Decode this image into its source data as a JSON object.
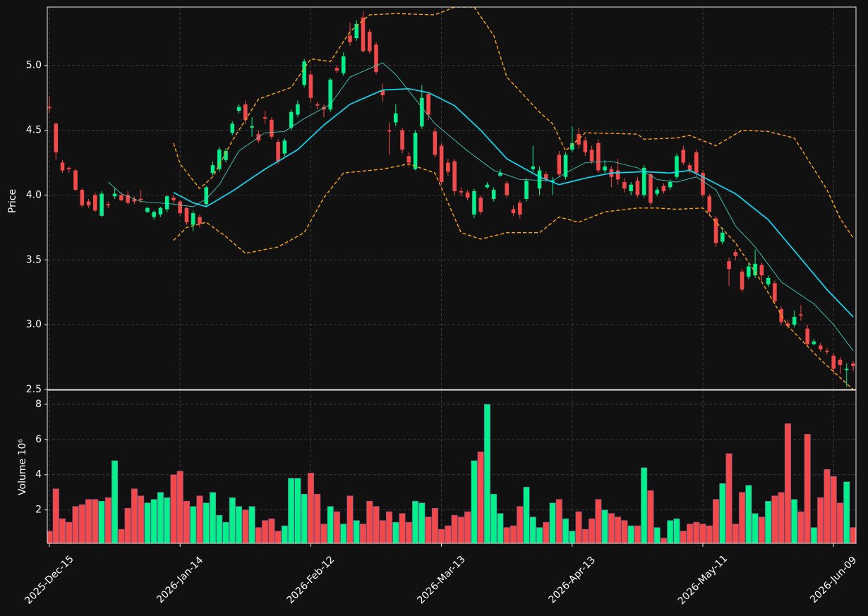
{
  "chart_data": [
    {
      "type": "candlestick",
      "ylabel": "Price",
      "ylim": [
        2.5,
        5.45
      ],
      "yticks": [
        2.5,
        {
          "value": 3.0,
          "label": "3.0"
        },
        3.5,
        {
          "value": 4.0,
          "label": "4.0"
        },
        4.5,
        {
          "value": 5.0,
          "label": "5.0"
        }
      ],
      "grid": true,
      "up_color": "#00f08c",
      "down_color": "#f24a4a",
      "open": [
        4.68,
        4.55,
        4.25,
        4.21,
        4.19,
        4.04,
        3.95,
        4.0,
        3.84,
        3.93,
        3.99,
        4.0,
        4.0,
        3.97,
        3.97,
        3.87,
        3.83,
        3.85,
        3.89,
        3.98,
        3.95,
        3.9,
        3.77,
        3.83,
        3.93,
        4.17,
        4.2,
        4.27,
        4.48,
        4.65,
        4.7,
        4.52,
        4.47,
        4.6,
        4.58,
        4.41,
        4.32,
        4.52,
        4.62,
        4.85,
        4.93,
        4.7,
        4.68,
        4.66,
        4.98,
        4.94,
        5.23,
        5.21,
        5.37,
        5.26,
        5.16,
        4.81,
        4.5,
        4.56,
        4.5,
        4.3,
        4.2,
        4.53,
        4.78,
        4.49,
        4.38,
        4.25,
        4.26,
        4.03,
        4.02,
        3.85,
        3.98,
        4.06,
        3.97,
        4.15,
        4.09,
        3.89,
        3.94,
        3.97,
        4.2,
        4.05,
        4.16,
        4.1,
        4.31,
        4.14,
        4.35,
        4.47,
        4.42,
        4.35,
        4.4,
        4.19,
        4.2,
        4.19,
        4.1,
        4.03,
        4.11,
        4.0,
        4.16,
        4.01,
        4.07,
        4.06,
        4.14,
        4.35,
        4.23,
        4.33,
        4.17,
        3.99,
        3.82,
        3.64,
        3.49,
        3.56,
        3.41,
        3.37,
        3.38,
        3.46,
        3.31,
        3.32,
        3.12,
        3.01,
        3.0,
        3.08,
        2.97,
        2.85,
        2.84,
        2.8,
        2.76,
        2.73,
        2.65,
        2.7
      ],
      "high": [
        4.76,
        4.56,
        4.27,
        4.22,
        4.2,
        4.05,
        3.97,
        4.02,
        4.03,
        3.95,
        4.05,
        4.02,
        4.03,
        3.99,
        4.04,
        3.91,
        3.88,
        3.91,
        4.0,
        4.0,
        3.96,
        3.91,
        3.88,
        3.85,
        4.07,
        4.26,
        4.37,
        4.36,
        4.57,
        4.7,
        4.73,
        4.6,
        4.5,
        4.65,
        4.6,
        4.43,
        4.44,
        4.66,
        4.73,
        5.05,
        4.96,
        4.72,
        4.7,
        4.9,
        5.0,
        5.1,
        5.33,
        5.35,
        5.42,
        5.28,
        5.18,
        4.86,
        4.56,
        4.7,
        4.52,
        4.33,
        4.5,
        4.85,
        4.8,
        4.52,
        4.4,
        4.28,
        4.28,
        4.06,
        4.04,
        4.05,
        4.0,
        4.1,
        4.06,
        4.2,
        4.11,
        3.92,
        3.96,
        4.13,
        4.38,
        4.22,
        4.18,
        4.14,
        4.34,
        4.33,
        4.53,
        4.52,
        4.45,
        4.38,
        4.43,
        4.27,
        4.22,
        4.28,
        4.13,
        4.1,
        4.14,
        4.23,
        4.18,
        4.06,
        4.09,
        4.12,
        4.32,
        4.38,
        4.25,
        4.35,
        4.19,
        4.01,
        3.84,
        3.75,
        3.52,
        3.58,
        3.43,
        3.48,
        3.58,
        3.48,
        3.38,
        3.34,
        3.14,
        3.04,
        3.11,
        3.15,
        3.0,
        2.89,
        2.86,
        2.82,
        2.78,
        2.75,
        2.7,
        2.72
      ],
      "low": [
        4.63,
        4.27,
        4.17,
        4.17,
        4.03,
        3.91,
        3.9,
        3.87,
        3.83,
        3.9,
        3.97,
        3.95,
        3.93,
        3.93,
        3.94,
        3.86,
        3.81,
        3.83,
        3.87,
        3.93,
        3.84,
        3.77,
        3.72,
        3.75,
        3.91,
        4.15,
        4.18,
        4.25,
        4.46,
        4.63,
        4.55,
        4.45,
        4.4,
        4.55,
        4.43,
        4.24,
        4.3,
        4.5,
        4.6,
        4.83,
        4.72,
        4.66,
        4.6,
        4.64,
        4.94,
        4.92,
        5.15,
        5.19,
        5.1,
        5.09,
        4.93,
        4.72,
        4.31,
        4.53,
        4.32,
        4.22,
        4.19,
        4.51,
        4.58,
        4.29,
        4.08,
        4.15,
        4.0,
        3.99,
        3.96,
        3.82,
        3.85,
        4.05,
        3.95,
        4.14,
        3.98,
        3.84,
        3.82,
        3.95,
        4.18,
        4.0,
        4.1,
        4.0,
        4.14,
        4.12,
        4.33,
        4.36,
        4.3,
        4.24,
        4.17,
        4.17,
        4.06,
        4.08,
        4.02,
        4.0,
        3.98,
        3.98,
        3.92,
        3.99,
        4.01,
        4.04,
        4.12,
        4.23,
        4.17,
        4.15,
        3.98,
        3.84,
        3.6,
        3.62,
        3.3,
        3.5,
        3.25,
        3.35,
        3.36,
        3.34,
        3.29,
        3.16,
        3.0,
        2.97,
        2.98,
        3.03,
        2.83,
        2.84,
        2.79,
        2.77,
        2.62,
        2.62,
        2.52,
        2.64
      ],
      "close": [
        4.67,
        4.33,
        4.19,
        4.2,
        4.04,
        3.92,
        3.92,
        3.88,
        4.01,
        3.92,
        4.01,
        3.96,
        3.94,
        3.95,
        3.96,
        3.9,
        3.87,
        3.9,
        3.99,
        3.96,
        3.86,
        3.79,
        3.86,
        3.78,
        4.06,
        4.23,
        4.35,
        4.34,
        4.55,
        4.68,
        4.58,
        4.53,
        4.42,
        4.59,
        4.45,
        4.26,
        4.42,
        4.64,
        4.7,
        5.03,
        4.75,
        4.69,
        4.66,
        4.89,
        4.96,
        5.07,
        5.18,
        5.32,
        5.11,
        5.11,
        4.95,
        4.77,
        4.49,
        4.63,
        4.35,
        4.25,
        4.48,
        4.75,
        4.62,
        4.31,
        4.1,
        4.18,
        4.03,
        4.02,
        3.98,
        4.03,
        3.87,
        4.08,
        4.04,
        4.17,
        4.0,
        3.86,
        3.85,
        4.11,
        4.22,
        4.19,
        4.12,
        4.11,
        4.16,
        4.31,
        4.4,
        4.39,
        4.33,
        4.26,
        4.19,
        4.22,
        4.14,
        4.12,
        4.05,
        4.08,
        4.0,
        4.21,
        3.94,
        4.04,
        4.03,
        4.1,
        4.3,
        4.25,
        4.19,
        4.17,
        4.0,
        3.87,
        3.63,
        3.71,
        3.43,
        3.53,
        3.27,
        3.45,
        3.47,
        3.38,
        3.36,
        3.18,
        3.02,
        2.99,
        3.06,
        3.07,
        2.85,
        2.87,
        2.81,
        2.79,
        2.66,
        2.69,
        2.66,
        2.68
      ],
      "lines": [
        {
          "color": "#40e0d0",
          "linestyle": "solid",
          "x": [
            9,
            11,
            14,
            19,
            22,
            24,
            26,
            29,
            33,
            36,
            39,
            43,
            46,
            51,
            53,
            56,
            59,
            64,
            68,
            72,
            77,
            79,
            82,
            86,
            90,
            93,
            96,
            99,
            102,
            105,
            108,
            112,
            117,
            120,
            123
          ],
          "values": [
            4.1,
            4.01,
            3.95,
            3.93,
            3.91,
            3.97,
            4.08,
            4.34,
            4.48,
            4.49,
            4.59,
            4.7,
            4.91,
            5.02,
            4.93,
            4.74,
            4.55,
            4.34,
            4.19,
            4.12,
            4.11,
            4.17,
            4.25,
            4.26,
            4.21,
            4.12,
            4.1,
            4.14,
            4.04,
            3.76,
            3.6,
            3.33,
            3.16,
            3.0,
            2.8
          ]
        },
        {
          "color": "#00e5ff",
          "linestyle": "solid",
          "x": [
            19,
            22,
            24,
            28,
            33,
            38,
            42,
            46,
            51,
            55,
            58,
            62,
            66,
            70,
            75,
            78,
            82,
            86,
            91,
            95,
            98,
            100,
            105,
            110,
            114,
            119,
            123
          ],
          "values": [
            4.02,
            3.94,
            3.91,
            4.03,
            4.2,
            4.35,
            4.54,
            4.7,
            4.81,
            4.82,
            4.79,
            4.69,
            4.5,
            4.28,
            4.14,
            4.08,
            4.13,
            4.17,
            4.18,
            4.17,
            4.19,
            4.14,
            4.01,
            3.81,
            3.57,
            3.27,
            3.06
          ]
        },
        {
          "color": "#ffa500",
          "linestyle": "dashed",
          "x": [
            19,
            20,
            23,
            25,
            28,
            32,
            37,
            40,
            43,
            46,
            49,
            53,
            59,
            62,
            65,
            68,
            70,
            75,
            77,
            79,
            82,
            90,
            91,
            96,
            98,
            102,
            106,
            110,
            114,
            119,
            121,
            123
          ],
          "values": [
            4.4,
            4.24,
            4.05,
            4.14,
            4.42,
            4.74,
            4.83,
            5.05,
            5.03,
            5.26,
            5.39,
            5.4,
            5.39,
            5.45,
            5.45,
            5.23,
            4.91,
            4.64,
            4.55,
            4.34,
            4.48,
            4.47,
            4.43,
            4.44,
            4.46,
            4.38,
            4.5,
            4.49,
            4.44,
            4.04,
            3.82,
            3.67
          ]
        },
        {
          "color": "#ffa500",
          "linestyle": "dashed",
          "x": [
            19,
            21,
            24,
            27,
            30,
            35,
            39,
            42,
            45,
            51,
            55,
            59,
            63,
            66,
            70,
            75,
            78,
            81,
            85,
            90,
            93,
            96,
            100,
            105,
            109,
            113,
            118,
            123
          ],
          "values": [
            3.65,
            3.75,
            3.79,
            3.68,
            3.55,
            3.6,
            3.71,
            3.98,
            4.17,
            4.2,
            4.24,
            4.17,
            3.71,
            3.66,
            3.71,
            3.71,
            3.83,
            3.79,
            3.87,
            3.9,
            3.9,
            3.89,
            3.9,
            3.63,
            3.33,
            2.99,
            2.73,
            2.5
          ]
        }
      ]
    },
    {
      "type": "bar",
      "ylabel": "Volume  10⁶",
      "ylim": [
        0.1,
        8.8
      ],
      "yticks": [
        2,
        4,
        6,
        8
      ],
      "grid": true,
      "categories": [
        "2025-Dec-15",
        null,
        null,
        null,
        null,
        null,
        null,
        null,
        null,
        null,
        null,
        null,
        null,
        null,
        null,
        null,
        null,
        null,
        null,
        null,
        "2026-Jan-14",
        null,
        null,
        null,
        null,
        null,
        null,
        null,
        null,
        null,
        null,
        null,
        null,
        null,
        null,
        null,
        null,
        null,
        null,
        null,
        "2026-Feb-12",
        null,
        null,
        null,
        null,
        null,
        null,
        null,
        null,
        null,
        null,
        null,
        null,
        null,
        null,
        null,
        null,
        null,
        null,
        null,
        "2026-Mar-13",
        null,
        null,
        null,
        null,
        null,
        null,
        null,
        null,
        null,
        null,
        null,
        null,
        null,
        null,
        null,
        null,
        null,
        null,
        null,
        "2026-Apr-13",
        null,
        null,
        null,
        null,
        null,
        null,
        null,
        null,
        null,
        null,
        null,
        null,
        null,
        null,
        null,
        null,
        null,
        null,
        null,
        "2026-May-11",
        null,
        null,
        null,
        null,
        null,
        null,
        null,
        null,
        null,
        null,
        null,
        null,
        null,
        null,
        null,
        null,
        null,
        null,
        null,
        "2026-Jun-09",
        null,
        null,
        null
      ],
      "values": [
        0.8,
        3.2,
        1.5,
        1.3,
        2.2,
        2.3,
        2.6,
        2.6,
        2.5,
        2.7,
        4.8,
        0.9,
        2.1,
        3.2,
        2.8,
        2.4,
        2.6,
        3.0,
        2.7,
        4.0,
        4.2,
        2.5,
        2.2,
        2.8,
        2.4,
        3.0,
        1.7,
        1.3,
        2.7,
        2.2,
        2.0,
        2.2,
        1.0,
        1.4,
        1.5,
        0.8,
        1.1,
        3.8,
        3.8,
        2.9,
        4.1,
        2.9,
        1.2,
        2.2,
        1.9,
        1.2,
        2.8,
        1.4,
        1.2,
        2.5,
        2.2,
        1.4,
        1.9,
        1.3,
        1.8,
        1.3,
        2.5,
        2.4,
        1.6,
        2.1,
        0.9,
        1.1,
        1.7,
        1.6,
        1.9,
        4.8,
        5.3,
        8.0,
        2.9,
        1.8,
        1.0,
        1.1,
        2.2,
        3.3,
        1.6,
        1.0,
        1.3,
        2.4,
        2.6,
        1.5,
        0.8,
        1.9,
        0.9,
        1.5,
        2.6,
        2.0,
        1.8,
        1.6,
        1.4,
        1.1,
        1.1,
        4.4,
        3.1,
        1.0,
        0.4,
        1.4,
        1.5,
        0.8,
        1.2,
        1.3,
        1.2,
        1.1,
        2.6,
        3.5,
        5.2,
        1.2,
        3.0,
        3.4,
        1.8,
        1.6,
        2.5,
        2.8,
        3.0,
        6.9,
        2.6,
        1.9,
        6.3,
        1.0,
        2.7,
        4.3,
        3.9,
        2.4,
        3.6,
        1.0
      ]
    }
  ]
}
